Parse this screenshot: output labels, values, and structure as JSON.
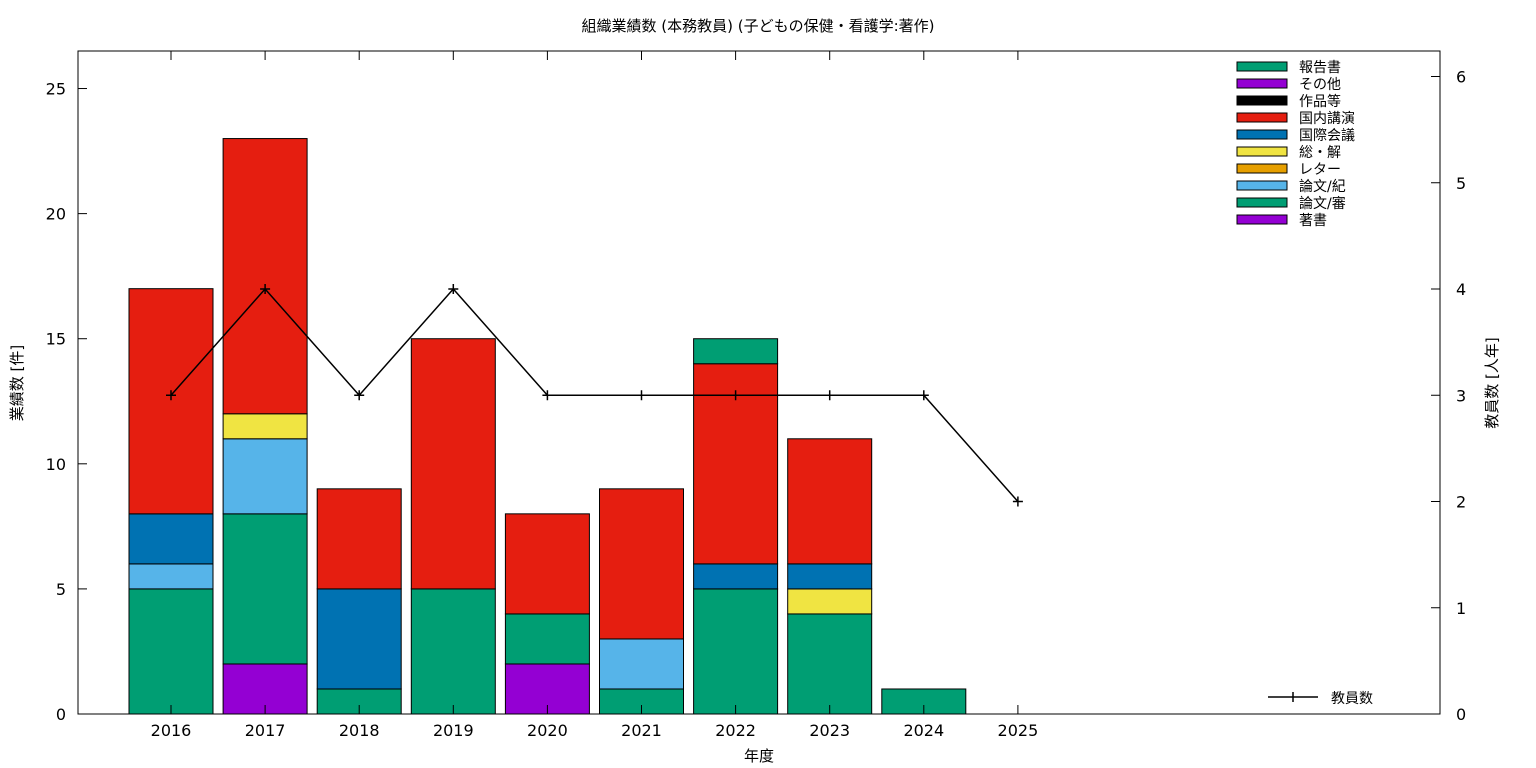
{
  "chart_data": {
    "type": "bar",
    "title": "組織業績数 (本務教員) (子どもの保健・看護学:著作)",
    "xlabel": "年度",
    "ylabel": "業績数 [件]",
    "y2label": "教員数 [人年]",
    "ylim": [
      0,
      26.5
    ],
    "y2lim": [
      0,
      6.24
    ],
    "yticks": [
      0,
      5,
      10,
      15,
      20,
      25
    ],
    "y2ticks": [
      0,
      1,
      2,
      3,
      4,
      5,
      6
    ],
    "grid": false,
    "legend_position": "top-right",
    "categories": [
      "2016",
      "2017",
      "2018",
      "2019",
      "2020",
      "2021",
      "2022",
      "2023",
      "2024",
      "2025"
    ],
    "series": [
      {
        "name": "著書",
        "color": "#9400d3",
        "values": [
          0,
          2,
          0,
          0,
          2,
          0,
          0,
          0,
          0,
          0
        ]
      },
      {
        "name": "論文/審",
        "color": "#009e73",
        "values": [
          5,
          6,
          1,
          5,
          2,
          1,
          5,
          4,
          0,
          0
        ]
      },
      {
        "name": "論文/紀",
        "color": "#56b4e9",
        "values": [
          1,
          3,
          0,
          0,
          0,
          2,
          0,
          0,
          0,
          0
        ]
      },
      {
        "name": "レター",
        "color": "#e69f00",
        "values": [
          0,
          0,
          0,
          0,
          0,
          0,
          0,
          0,
          0,
          0
        ]
      },
      {
        "name": "総・解",
        "color": "#f0e442",
        "values": [
          0,
          1,
          0,
          0,
          0,
          0,
          0,
          1,
          0,
          0
        ]
      },
      {
        "name": "国際会議",
        "color": "#0072b2",
        "values": [
          2,
          0,
          4,
          0,
          0,
          0,
          1,
          1,
          0,
          0
        ]
      },
      {
        "name": "国内講演",
        "color": "#e51e10",
        "values": [
          9,
          11,
          4,
          10,
          4,
          6,
          8,
          5,
          0,
          0
        ]
      },
      {
        "name": "作品等",
        "color": "#000000",
        "values": [
          0,
          0,
          0,
          0,
          0,
          0,
          0,
          0,
          0,
          0
        ]
      },
      {
        "name": "その他",
        "color": "#9400d3",
        "values": [
          0,
          0,
          0,
          0,
          0,
          0,
          0,
          0,
          0,
          0
        ]
      },
      {
        "name": "報告書",
        "color": "#009e73",
        "values": [
          0,
          0,
          0,
          0,
          0,
          0,
          1,
          0,
          1,
          0
        ]
      }
    ],
    "line_series": {
      "name": "教員数",
      "axis": "y2",
      "color": "#000000",
      "values": [
        3,
        4,
        3,
        4,
        3,
        3,
        3,
        3,
        3,
        2
      ]
    }
  }
}
